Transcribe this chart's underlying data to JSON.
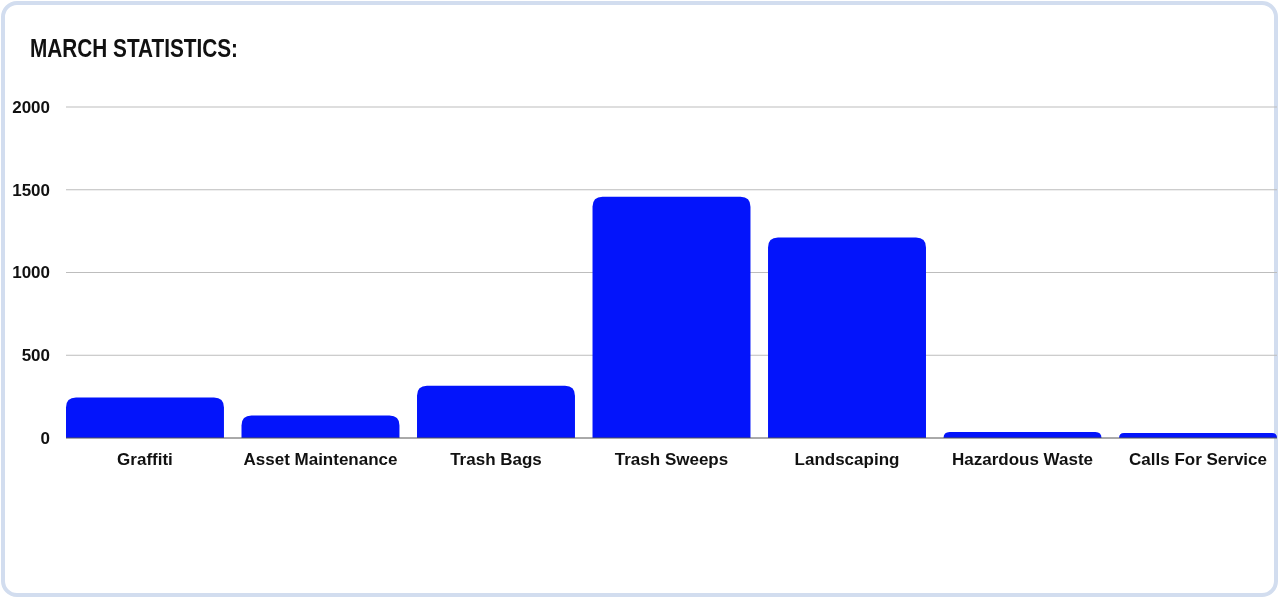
{
  "chart_data": {
    "type": "bar",
    "title": "MARCH STATISTICS:",
    "categories": [
      "Graffiti",
      "Asset Maintenance",
      "Trash Bags",
      "Trash Sweeps",
      "Landscaping",
      "Hazardous Waste",
      "Calls For Service"
    ],
    "values": [
      244,
      136,
      316,
      1458,
      1211,
      37,
      30
    ],
    "color": "#0314fb",
    "ylim": [
      0,
      2000
    ],
    "yticks": [
      0,
      500,
      1000,
      1500,
      2000
    ],
    "grid": "y"
  }
}
